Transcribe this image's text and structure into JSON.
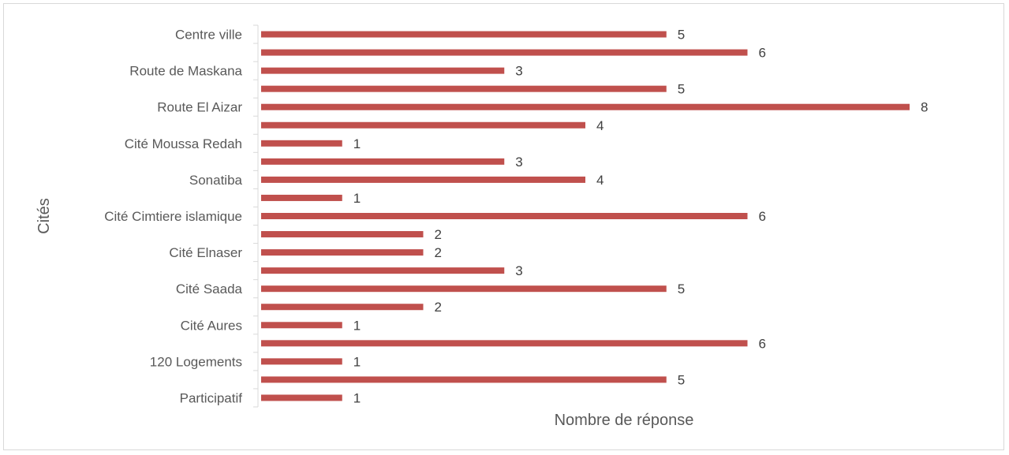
{
  "chart_data": {
    "type": "bar",
    "orientation": "horizontal",
    "title": "",
    "xlabel": "Nombre de réponse",
    "ylabel": "Cités",
    "xlim": [
      0,
      8
    ],
    "grid": false,
    "legend": "none",
    "bar_color": "#c0504d",
    "categories": [
      "Centre ville",
      "",
      "Route de Maskana",
      "",
      "Route El Aizar",
      "",
      "Cité Moussa Redah",
      "",
      "Sonatiba",
      "",
      "Cité Cimtiere islamique",
      "",
      "Cité Elnaser",
      "",
      "Cité Saada",
      "",
      "Cité Aures",
      "",
      "120 Logements",
      "",
      "Participatif"
    ],
    "values": [
      5,
      6,
      3,
      5,
      8,
      4,
      1,
      3,
      4,
      1,
      6,
      2,
      2,
      3,
      5,
      2,
      1,
      6,
      1,
      5,
      1
    ]
  }
}
